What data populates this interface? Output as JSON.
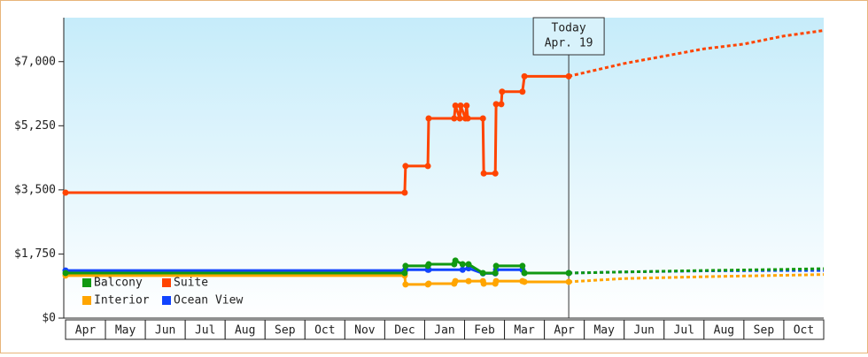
{
  "chart_data": {
    "type": "line",
    "categories": [
      "Apr",
      "May",
      "Jun",
      "Jul",
      "Aug",
      "Sep",
      "Oct",
      "Nov",
      "Dec",
      "Jan",
      "Feb",
      "Mar",
      "Apr",
      "May",
      "Jun",
      "Jul",
      "Aug",
      "Sep",
      "Oct"
    ],
    "xlim": [
      0,
      19
    ],
    "ylim": [
      0,
      8200
    ],
    "yticks": [
      {
        "value": 0,
        "label": "$0"
      },
      {
        "value": 1750,
        "label": "$1,750"
      },
      {
        "value": 3500,
        "label": "$3,500"
      },
      {
        "value": 5250,
        "label": "$5,250"
      },
      {
        "value": 7000,
        "label": "$7,000"
      }
    ],
    "today": {
      "x": 12.61,
      "label": [
        "Today",
        "Apr. 19"
      ]
    },
    "series": [
      {
        "name": "Balcony",
        "color": "#119911",
        "x": [
          0,
          8.5,
          8.52,
          9.08,
          9.1,
          9.74,
          9.77,
          9.95,
          10.1,
          10.46,
          10.77,
          10.79,
          11.45,
          11.5,
          12.61
        ],
        "values": [
          1230,
          1230,
          1425,
          1425,
          1470,
          1470,
          1570,
          1470,
          1470,
          1230,
          1230,
          1425,
          1425,
          1230,
          1230
        ],
        "projection": {
          "x": [
            12.61,
            14,
            16,
            18,
            19
          ],
          "values": [
            1230,
            1260,
            1300,
            1330,
            1350
          ]
        }
      },
      {
        "name": "Suite",
        "color": "#ff4400",
        "x": [
          0,
          8.5,
          8.52,
          9.08,
          9.1,
          9.74,
          9.77,
          9.88,
          9.9,
          10.02,
          10.05,
          10.08,
          10.46,
          10.48,
          10.77,
          10.79,
          10.92,
          10.94,
          11.45,
          11.5,
          12.61
        ],
        "values": [
          3425,
          3425,
          4150,
          4150,
          5450,
          5450,
          5800,
          5450,
          5800,
          5450,
          5800,
          5450,
          5450,
          3950,
          3950,
          5840,
          5840,
          6180,
          6180,
          6600,
          6600
        ],
        "projection": {
          "x": [
            12.61,
            14,
            15,
            16,
            17,
            18,
            19
          ],
          "values": [
            6600,
            6950,
            7150,
            7350,
            7480,
            7700,
            7850
          ]
        }
      },
      {
        "name": "Interior",
        "color": "#ffa500",
        "x": [
          0,
          8.5,
          8.52,
          9.08,
          9.1,
          9.74,
          9.77,
          10.1,
          10.46,
          10.48,
          10.77,
          10.79,
          11.45,
          11.5,
          12.61
        ],
        "values": [
          1160,
          1160,
          920,
          920,
          940,
          940,
          1010,
          1010,
          1010,
          940,
          940,
          1010,
          1010,
          990,
          990
        ],
        "projection": {
          "x": [
            12.61,
            14,
            16,
            18,
            19
          ],
          "values": [
            990,
            1080,
            1130,
            1170,
            1190
          ]
        }
      },
      {
        "name": "Ocean View",
        "color": "#1144ff",
        "x": [
          0,
          8.5,
          8.52,
          9.08,
          9.1,
          9.95,
          10.1,
          10.46,
          10.77,
          10.79,
          11.45,
          11.5,
          12.61
        ],
        "values": [
          1300,
          1300,
          1320,
          1320,
          1320,
          1320,
          1360,
          1220,
          1220,
          1320,
          1320,
          1230,
          1230
        ],
        "projection": {
          "x": [
            12.61,
            14,
            16,
            18,
            19
          ],
          "values": [
            1230,
            1260,
            1290,
            1300,
            1300
          ]
        }
      }
    ]
  }
}
